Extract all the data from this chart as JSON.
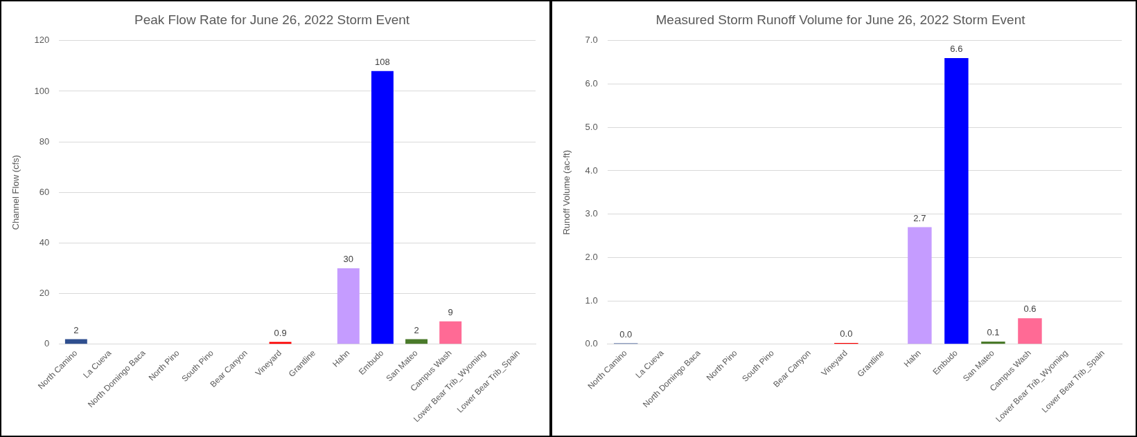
{
  "chart_data": [
    {
      "type": "bar",
      "title": "Peak Flow Rate for June 26, 2022 Storm Event",
      "ylabel": "Channel Flow (cfs)",
      "categories": [
        "North Camino",
        "La Cueva",
        "North Domingo Baca",
        "North Pino",
        "South Pino",
        "Bear Canyon",
        "Vineyard",
        "Grantline",
        "Hahn",
        "Embudo",
        "San Mateo",
        "Campus Wash",
        "Lower Bear Trib_Wyoming",
        "Lower Bear Trib_Spain"
      ],
      "values": [
        2,
        null,
        null,
        null,
        null,
        null,
        0.9,
        null,
        30,
        108,
        2,
        9,
        null,
        null
      ],
      "colors": [
        "#2f4f8f",
        "#cccccc",
        "#cccccc",
        "#cccccc",
        "#cccccc",
        "#cccccc",
        "#ff0000",
        "#cccccc",
        "#c59cff",
        "#0000ff",
        "#4a7a2a",
        "#ff6a95",
        "#cccccc",
        "#cccccc"
      ],
      "ylim": [
        0,
        120
      ],
      "yticks": [
        0,
        20,
        40,
        60,
        80,
        100,
        120
      ],
      "grid": "y",
      "data_labels": true
    },
    {
      "type": "bar",
      "title": "Measured Storm Runoff Volume for June 26, 2022 Storm Event",
      "ylabel": "Runoff Volume (ac-ft)",
      "categories": [
        "North Camino",
        "La Cueva",
        "North Domingo Baca",
        "North Pino",
        "South Pino",
        "Bear Canyon",
        "Vineyard",
        "Grantline",
        "Hahn",
        "Embudo",
        "San Mateo",
        "Campus Wash",
        "Lower Bear Trib_Wyoming",
        "Lower Bear Trib_Spain"
      ],
      "values": [
        0.02,
        null,
        null,
        null,
        null,
        null,
        0.03,
        null,
        2.7,
        6.6,
        0.06,
        0.6,
        null,
        null
      ],
      "value_labels": [
        "0.0",
        null,
        null,
        null,
        null,
        null,
        "0.0",
        null,
        "2.7",
        "6.6",
        "0.1",
        "0.6",
        null,
        null
      ],
      "colors": [
        "#2f4f8f",
        "#cccccc",
        "#cccccc",
        "#cccccc",
        "#cccccc",
        "#cccccc",
        "#ff0000",
        "#cccccc",
        "#c59cff",
        "#0000ff",
        "#4a7a2a",
        "#ff6a95",
        "#cccccc",
        "#cccccc"
      ],
      "ylim": [
        0,
        7
      ],
      "yticks": [
        {
          "value": 0,
          "label": "0.0"
        },
        {
          "value": 1,
          "label": "1.0"
        },
        {
          "value": 2,
          "label": "2.0"
        },
        {
          "value": 3,
          "label": "3.0"
        },
        {
          "value": 4,
          "label": "4.0"
        },
        {
          "value": 5,
          "label": "5.0"
        },
        {
          "value": 6,
          "label": "6.0"
        },
        {
          "value": 7,
          "label": "7.0"
        }
      ],
      "grid": "y"
    }
  ]
}
